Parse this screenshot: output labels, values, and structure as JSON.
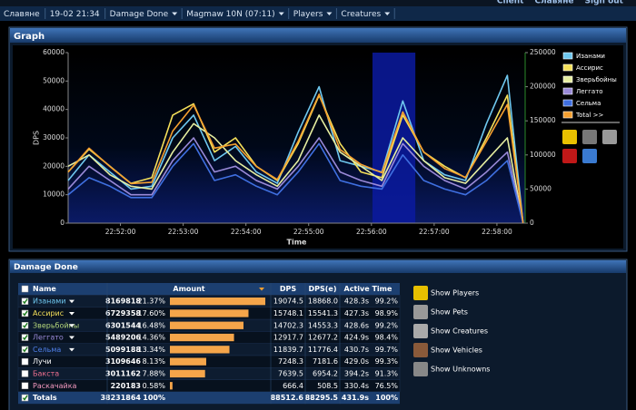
{
  "top_links": [
    "Client",
    "Славяне",
    "Sign out"
  ],
  "nav": [
    {
      "label": "Славяне",
      "dropdown": false
    },
    {
      "label": "19-02 21:34",
      "dropdown": false
    },
    {
      "label": "Damage Done",
      "dropdown": true
    },
    {
      "label": "Magmaw 10N (07:11)",
      "dropdown": true
    },
    {
      "label": "Players",
      "dropdown": true
    },
    {
      "label": "Creatures",
      "dropdown": true
    }
  ],
  "graph_panel": {
    "title": "Graph",
    "chart_data": {
      "type": "line",
      "ylabel": "DPS",
      "xlabel": "Time",
      "xlim": [
        3070,
        3507
      ],
      "xticks": [
        {
          "value": 3120,
          "label": "22:52:00"
        },
        {
          "value": 3180,
          "label": "22:53:00"
        },
        {
          "value": 3240,
          "label": "22:54:00"
        },
        {
          "value": 3300,
          "label": "22:55:00"
        },
        {
          "value": 3360,
          "label": "22:56:00"
        },
        {
          "value": 3420,
          "label": "22:57:00"
        },
        {
          "value": 3480,
          "label": "22:58:00"
        }
      ],
      "ylim": [
        0,
        60000
      ],
      "yticks": [
        0,
        10000,
        20000,
        30000,
        40000,
        50000,
        60000
      ],
      "y2lim": [
        0,
        250000
      ],
      "y2ticks": [
        0,
        50000,
        100000,
        150000,
        200000,
        250000
      ],
      "highlight": [
        3361,
        3402
      ],
      "x": [
        3070,
        3090,
        3110,
        3130,
        3150,
        3170,
        3190,
        3210,
        3230,
        3250,
        3270,
        3290,
        3310,
        3330,
        3350,
        3370,
        3390,
        3410,
        3430,
        3450,
        3470,
        3490,
        3505
      ],
      "series": [
        {
          "name": "Изанами",
          "color": "#6fc8ef",
          "values": [
            15000,
            24000,
            18000,
            12000,
            13000,
            30000,
            38000,
            22000,
            27000,
            18000,
            14000,
            32000,
            48000,
            22000,
            20000,
            18000,
            43000,
            22000,
            17000,
            15000,
            35000,
            52000,
            0
          ]
        },
        {
          "name": "Ассирис",
          "color": "#f5e05a",
          "values": [
            18000,
            26000,
            20000,
            14000,
            16000,
            38000,
            42000,
            25000,
            30000,
            20000,
            15000,
            28000,
            45000,
            28000,
            18000,
            16000,
            38000,
            25000,
            20000,
            16000,
            30000,
            45000,
            0
          ]
        },
        {
          "name": "Зверьбойны",
          "color": "#e6eea0",
          "values": [
            20000,
            24000,
            17000,
            13000,
            12000,
            25000,
            35000,
            30000,
            22000,
            17000,
            13000,
            22000,
            38000,
            25000,
            20000,
            15000,
            30000,
            22000,
            16000,
            14000,
            22000,
            30000,
            0
          ]
        },
        {
          "name": "Леггато",
          "color": "#9a8ad8",
          "values": [
            12000,
            20000,
            15000,
            10000,
            10000,
            22000,
            30000,
            18000,
            20000,
            15000,
            12000,
            20000,
            30000,
            18000,
            15000,
            13000,
            28000,
            20000,
            15000,
            12000,
            18000,
            25000,
            0
          ]
        },
        {
          "name": "Сельма",
          "color": "#3f6fe0",
          "values": [
            10000,
            16000,
            13000,
            9000,
            9000,
            20000,
            28000,
            15000,
            17000,
            13000,
            10000,
            18000,
            28000,
            15000,
            13000,
            12000,
            24000,
            15000,
            12000,
            10000,
            15000,
            22000,
            0
          ]
        },
        {
          "name": "Total >>",
          "color": "#f5a030",
          "axis": "y2",
          "values": [
            75000,
            110000,
            83000,
            58000,
            60000,
            135000,
            173000,
            110000,
            116000,
            83000,
            64000,
            120000,
            189000,
            108000,
            86000,
            74000,
            163000,
            104000,
            80000,
            67000,
            120000,
            174000,
            0
          ]
        }
      ]
    }
  },
  "damage_panel": {
    "title": "Damage Done",
    "table": {
      "headers": [
        "Name",
        "Amount",
        "DPS",
        "DPS(e)",
        "Active Time"
      ],
      "rows": [
        {
          "checked": true,
          "dropdown": true,
          "color": "#6fc8ef",
          "name": "Изанами",
          "amount": "8169818",
          "pct": "21.37%",
          "dps": "19074.5",
          "dpse": "18868.0",
          "time": "428.3s",
          "active": "99.2%"
        },
        {
          "checked": true,
          "dropdown": true,
          "color": "#f5e05a",
          "name": "Ассирис",
          "amount": "6729358",
          "pct": "17.60%",
          "dps": "15748.1",
          "dpse": "15541.3",
          "time": "427.3s",
          "active": "98.9%"
        },
        {
          "checked": true,
          "dropdown": true,
          "color": "#b4d67a",
          "name": "Зверьбойны",
          "amount": "6301544",
          "pct": "16.48%",
          "dps": "14702.3",
          "dpse": "14553.3",
          "time": "428.6s",
          "active": "99.2%"
        },
        {
          "checked": true,
          "dropdown": true,
          "color": "#9a8ad8",
          "name": "Леггато",
          "amount": "5489206",
          "pct": "14.36%",
          "dps": "12917.7",
          "dpse": "12677.2",
          "time": "424.9s",
          "active": "98.4%"
        },
        {
          "checked": true,
          "dropdown": true,
          "color": "#4f7fe8",
          "name": "Сельма",
          "amount": "5099188",
          "pct": "13.34%",
          "dps": "11839.7",
          "dpse": "11776.4",
          "time": "430.7s",
          "active": "99.7%"
        },
        {
          "checked": false,
          "dropdown": false,
          "color": "#ffffff",
          "name": "Лучи",
          "amount": "3109646",
          "pct": "8.13%",
          "dps": "7248.3",
          "dpse": "7181.6",
          "time": "429.0s",
          "active": "99.3%"
        },
        {
          "checked": false,
          "dropdown": false,
          "color": "#f07090",
          "name": "Бакста",
          "amount": "3011162",
          "pct": "7.88%",
          "dps": "7639.5",
          "dpse": "6954.2",
          "time": "394.2s",
          "active": "91.3%"
        },
        {
          "checked": false,
          "dropdown": false,
          "color": "#f59ac0",
          "name": "Раскачайка",
          "amount": "220183",
          "pct": "0.58%",
          "dps": "666.4",
          "dpse": "508.5",
          "time": "330.4s",
          "active": "76.5%"
        }
      ],
      "totals": {
        "checked": true,
        "name": "Totals",
        "amount": "38231864",
        "pct": "100%",
        "dps": "88512.6",
        "dpse": "88295.5",
        "time": "431.9s",
        "active": "100%"
      }
    },
    "links": [
      "Show Players",
      "Show Pets",
      "Show Creatures",
      "Show Vehicles",
      "Show Unknowns"
    ]
  }
}
